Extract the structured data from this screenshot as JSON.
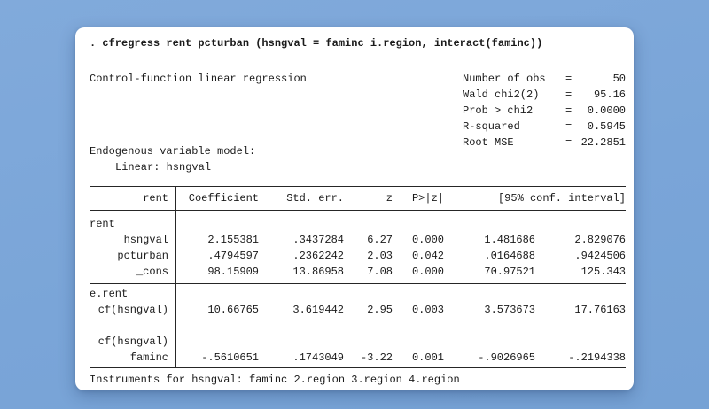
{
  "app": {
    "background_color": "#7aa5d8",
    "card_color": "#ffffff",
    "text_color": "#1a1a1a"
  },
  "command_line": ". cfregress rent pcturban (hsngval = faminc i.region, interact(faminc))",
  "header": {
    "title": "Control-function linear regression",
    "stats": [
      {
        "label": "Number of obs",
        "eq": "=",
        "value": "50"
      },
      {
        "label": "Wald chi2(2)",
        "eq": "=",
        "value": "95.16"
      },
      {
        "label": "Prob > chi2",
        "eq": "=",
        "value": "0.0000"
      },
      {
        "label": "R-squared",
        "eq": "=",
        "value": "0.5945"
      },
      {
        "label": "Root MSE",
        "eq": "=",
        "value": "22.2851"
      }
    ],
    "endogenous_model_label": "Endogenous variable model:",
    "endogenous_model_detail": "Linear: hsngval"
  },
  "table": {
    "col_headers": {
      "name": "rent",
      "coef": "Coefficient",
      "stderr": "Std. err.",
      "z": "z",
      "p": "P>|z|",
      "ci": "[95% conf. interval]"
    },
    "rows": [
      {
        "name": "rent",
        "type": "group"
      },
      {
        "name": "hsngval",
        "coef": "2.155381",
        "stderr": ".3437284",
        "z": "6.27",
        "p": "0.000",
        "ci_low": "1.481686",
        "ci_high": "2.829076"
      },
      {
        "name": "pcturban",
        "coef": ".4794597",
        "stderr": ".2362242",
        "z": "2.03",
        "p": "0.042",
        "ci_low": ".0164688",
        "ci_high": ".9424506"
      },
      {
        "name": "_cons",
        "coef": "98.15909",
        "stderr": "13.86958",
        "z": "7.08",
        "p": "0.000",
        "ci_low": "70.97521",
        "ci_high": "125.343"
      },
      {
        "name": "e.rent",
        "type": "group"
      },
      {
        "name": "cf(hsngval)",
        "coef": "10.66765",
        "stderr": "3.619442",
        "z": "2.95",
        "p": "0.003",
        "ci_low": "3.573673",
        "ci_high": "17.76163"
      },
      {
        "name": "",
        "type": "blank"
      },
      {
        "name": "cf(hsngval)",
        "type": "group-right"
      },
      {
        "name": "faminc",
        "coef": "-.5610651",
        "stderr": ".1743049",
        "z": "-3.22",
        "p": "0.001",
        "ci_low": "-.9026965",
        "ci_high": "-.2194338"
      }
    ]
  },
  "footer": {
    "instruments_note": "Instruments for hsngval: faminc 2.region 3.region 4.region"
  }
}
